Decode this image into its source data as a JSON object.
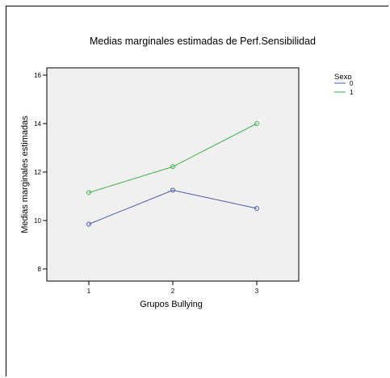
{
  "chart_data": {
    "type": "line",
    "title": "Medias marginales estimadas de Perf.Sensibilidad",
    "xlabel": "Grupos Bullying",
    "ylabel": "Medias marginales estimadas",
    "categories": [
      "1",
      "2",
      "3"
    ],
    "ylim": [
      7.5,
      16.3
    ],
    "yticks": [
      8,
      10,
      12,
      14,
      16
    ],
    "legend_title": "Sexo",
    "legend_position": "top-right, outside plot",
    "plot_background": "#f0f0f0",
    "series": [
      {
        "name": "0",
        "color": "#4a5cb0",
        "values": [
          9.85,
          11.25,
          10.5
        ]
      },
      {
        "name": "1",
        "color": "#3cb44a",
        "values": [
          11.15,
          12.22,
          14.0
        ]
      }
    ]
  }
}
